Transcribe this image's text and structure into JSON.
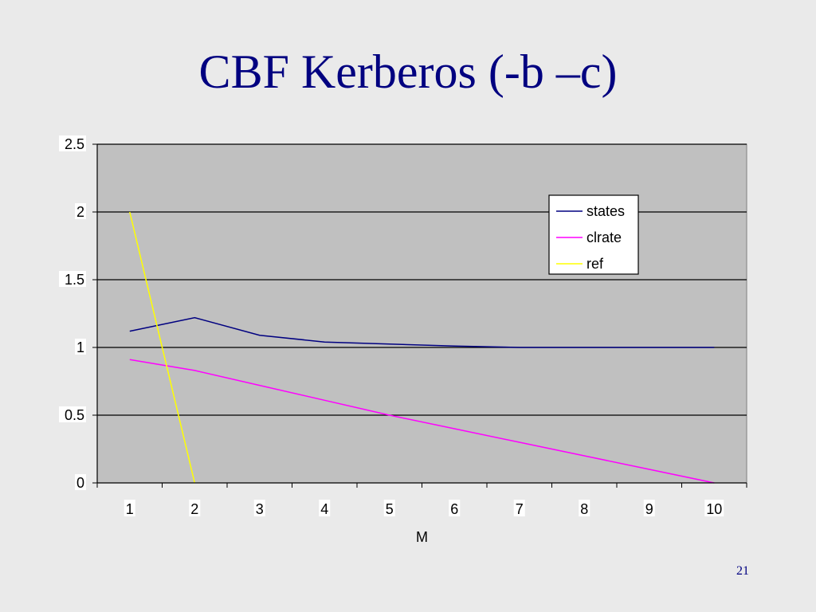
{
  "slide": {
    "title": "CBF Kerberos (-b –c)",
    "page_number": "21"
  },
  "colors": {
    "title": "#000080",
    "background": "#eaeaea",
    "plot_area": "#c0c0c0"
  },
  "chart_data": {
    "type": "line",
    "title": "",
    "xlabel": "M",
    "ylabel": "",
    "categories": [
      "1",
      "2",
      "3",
      "4",
      "5",
      "6",
      "7",
      "8",
      "9",
      "10"
    ],
    "ylim": [
      0,
      2.5
    ],
    "yticks": [
      "0",
      "0.5",
      "1",
      "1.5",
      "2",
      "2.5"
    ],
    "grid": true,
    "legend_position": "top-right",
    "series": [
      {
        "name": "states",
        "color": "#000080",
        "values": [
          1.12,
          1.22,
          1.09,
          1.04,
          1.025,
          1.01,
          1.0,
          1.0,
          1.0,
          1.0
        ]
      },
      {
        "name": "clrate",
        "color": "#ff00ff",
        "values": [
          0.91,
          0.83,
          0.72,
          0.61,
          0.5,
          0.4,
          0.3,
          0.2,
          0.1,
          0.0
        ]
      },
      {
        "name": "ref",
        "color": "#ffff00",
        "values": [
          2.0,
          0.0,
          null,
          null,
          null,
          null,
          null,
          null,
          null,
          null
        ]
      }
    ]
  }
}
